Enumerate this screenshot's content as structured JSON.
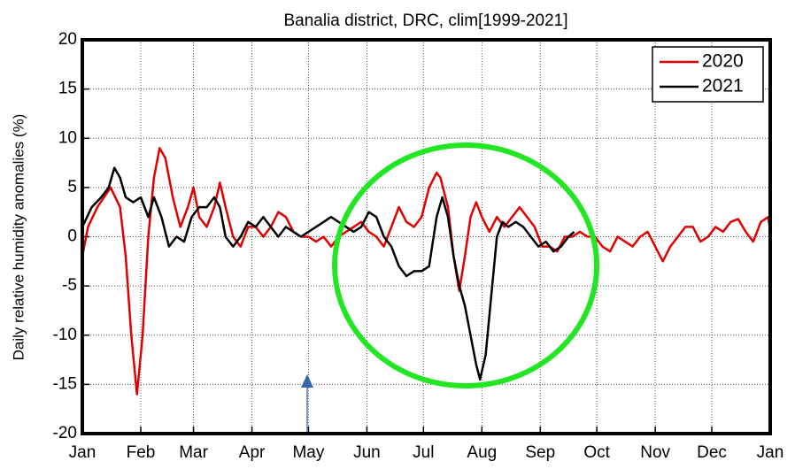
{
  "chart_data": {
    "type": "line",
    "title": "Banalia district, DRC, clim[1999-2021]",
    "ylabel": "Daily relative humidity anomalies (%)",
    "xlim": [
      0,
      365
    ],
    "xticks": [
      {
        "value": 0,
        "label": "Jan"
      },
      {
        "value": 31,
        "label": "Feb"
      },
      {
        "value": 59,
        "label": "Mar"
      },
      {
        "value": 90,
        "label": "Apr"
      },
      {
        "value": 120,
        "label": "May"
      },
      {
        "value": 151,
        "label": "Jun"
      },
      {
        "value": 181,
        "label": "Jul"
      },
      {
        "value": 212,
        "label": "Aug"
      },
      {
        "value": 243,
        "label": "Sep"
      },
      {
        "value": 273,
        "label": "Oct"
      },
      {
        "value": 304,
        "label": "Nov"
      },
      {
        "value": 334,
        "label": "Dec"
      },
      {
        "value": 365,
        "label": "Jan"
      }
    ],
    "ylim": [
      -20,
      20
    ],
    "yticks": [
      -20,
      -15,
      -10,
      -5,
      0,
      5,
      10,
      15,
      20
    ],
    "grid": true,
    "legend": "upper right",
    "series": [
      {
        "name": "2020",
        "color": "#e00000",
        "x": [
          0,
          3,
          8,
          15,
          20,
          23,
          26,
          29,
          32,
          35,
          38,
          41,
          44,
          48,
          52,
          56,
          59,
          62,
          66,
          70,
          73,
          76,
          80,
          84,
          88,
          92,
          96,
          100,
          104,
          108,
          112,
          116,
          120,
          124,
          128,
          132,
          136,
          140,
          144,
          148,
          152,
          156,
          160,
          164,
          168,
          172,
          176,
          180,
          184,
          188,
          190,
          194,
          197,
          200,
          203,
          206,
          209,
          212,
          216,
          220,
          224,
          228,
          232,
          236,
          240,
          244,
          248,
          252,
          256,
          260,
          264,
          268,
          272,
          276,
          280,
          284,
          288,
          292,
          296,
          300,
          304,
          308,
          312,
          316,
          320,
          324,
          328,
          332,
          336,
          340,
          344,
          348,
          352,
          356,
          360,
          364,
          365
        ],
        "values": [
          -2,
          1,
          3,
          5,
          3,
          -2,
          -10,
          -16,
          -10,
          0,
          6,
          9,
          8,
          4,
          1,
          3,
          5,
          2,
          1,
          3,
          5.5,
          3,
          0,
          -1,
          1,
          1,
          0,
          1,
          2.5,
          2,
          0.5,
          0,
          0,
          -0.5,
          0,
          -1,
          0,
          0.5,
          1,
          1.5,
          0.5,
          0,
          -1,
          1,
          3,
          1.5,
          1,
          2,
          5,
          6.5,
          6,
          3,
          -2,
          -5.5,
          -2,
          2,
          3.5,
          2,
          0.5,
          2,
          1,
          2,
          3,
          2,
          1,
          -1,
          -1,
          -1.5,
          0,
          0,
          0.5,
          0,
          0,
          -1,
          -1.5,
          0,
          -0.5,
          -1,
          0,
          0.5,
          -1,
          -2.5,
          -1,
          0,
          1,
          1,
          -0.5,
          0,
          1,
          0.5,
          1.5,
          1.8,
          0.5,
          -0.5,
          1.5,
          2,
          0.5
        ]
      },
      {
        "name": "2021",
        "color": "#000000",
        "x": [
          0,
          5,
          10,
          14,
          17,
          20,
          23,
          27,
          31,
          35,
          38,
          42,
          46,
          50,
          54,
          58,
          62,
          66,
          70,
          73,
          76,
          80,
          84,
          88,
          92,
          96,
          100,
          104,
          108,
          112,
          116,
          120,
          124,
          128,
          132,
          136,
          140,
          144,
          148,
          152,
          156,
          160,
          164,
          168,
          172,
          176,
          180,
          184,
          188,
          191,
          194,
          197,
          200,
          203,
          206,
          209,
          211,
          214,
          217,
          220,
          223,
          226,
          230,
          234,
          238,
          242,
          246,
          250,
          254,
          258,
          261
        ],
        "values": [
          1,
          3,
          4,
          5,
          7,
          6,
          4,
          3.5,
          4,
          2,
          4,
          2,
          -1,
          0,
          -0.5,
          2,
          3,
          3,
          4,
          3,
          0,
          -1,
          0,
          1.5,
          1,
          2,
          1,
          0,
          1,
          0.5,
          0,
          0.5,
          1,
          1.5,
          2,
          1.5,
          1,
          0.5,
          1,
          2.5,
          2,
          0,
          -1,
          -3,
          -4,
          -3.5,
          -3.5,
          -3,
          2,
          4,
          2,
          -2,
          -5,
          -7,
          -10,
          -13,
          -14.5,
          -12,
          -6,
          0,
          1.5,
          1,
          1.5,
          1,
          0,
          -1,
          -0.5,
          -1.5,
          -1,
          0,
          0.5
        ]
      }
    ]
  }
}
